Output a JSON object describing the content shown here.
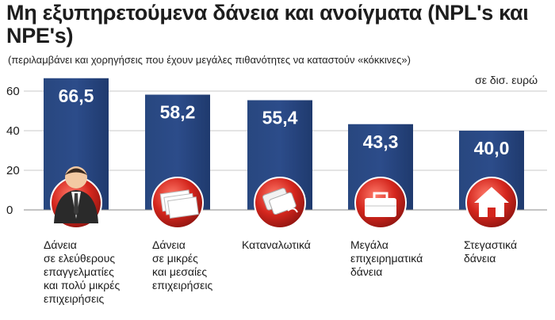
{
  "chart_data": {
    "type": "bar",
    "title": "Μη εξυπηρετούμενα δάνεια και ανοίγματα (NPL's και NPE's)",
    "subtitle": "(περιλαμβάνει και χορηγήσεις που έχουν μεγάλες πιθανότητες να καταστούν «κόκκινες»)",
    "unit": "σε δισ. ευρώ",
    "categories": [
      "Δάνεια\nσε ελεύθερους\nεπαγγελματίες\nκαι πολύ μικρές\nεπιχειρήσεις",
      "Δάνεια\nσε μικρές\nκαι μεσαίες\nεπιχειρήσεις",
      "Καταναλωτικά",
      "Μεγάλα\nεπιχειρηματικά\nδάνεια",
      "Στεγαστικά\nδάνεια"
    ],
    "values": [
      66.5,
      58.2,
      55.4,
      43.3,
      40.0
    ],
    "value_labels": [
      "66,5",
      "58,2",
      "55,4",
      "43,3",
      "40,0"
    ],
    "yticks": [
      "0",
      "20",
      "40",
      "60"
    ],
    "ylim": [
      0,
      70
    ],
    "grid": true,
    "icons": [
      "businessman-icon",
      "paper-stack-icon",
      "credit-cards-icon",
      "briefcase-icon",
      "house-icon"
    ],
    "colors": {
      "bar": "#2c4c8a",
      "bar_dark": "#1f3a6e",
      "icon_red": "#d4261d",
      "grid": "#c8c8c8",
      "value_text": "#ffffff"
    }
  }
}
